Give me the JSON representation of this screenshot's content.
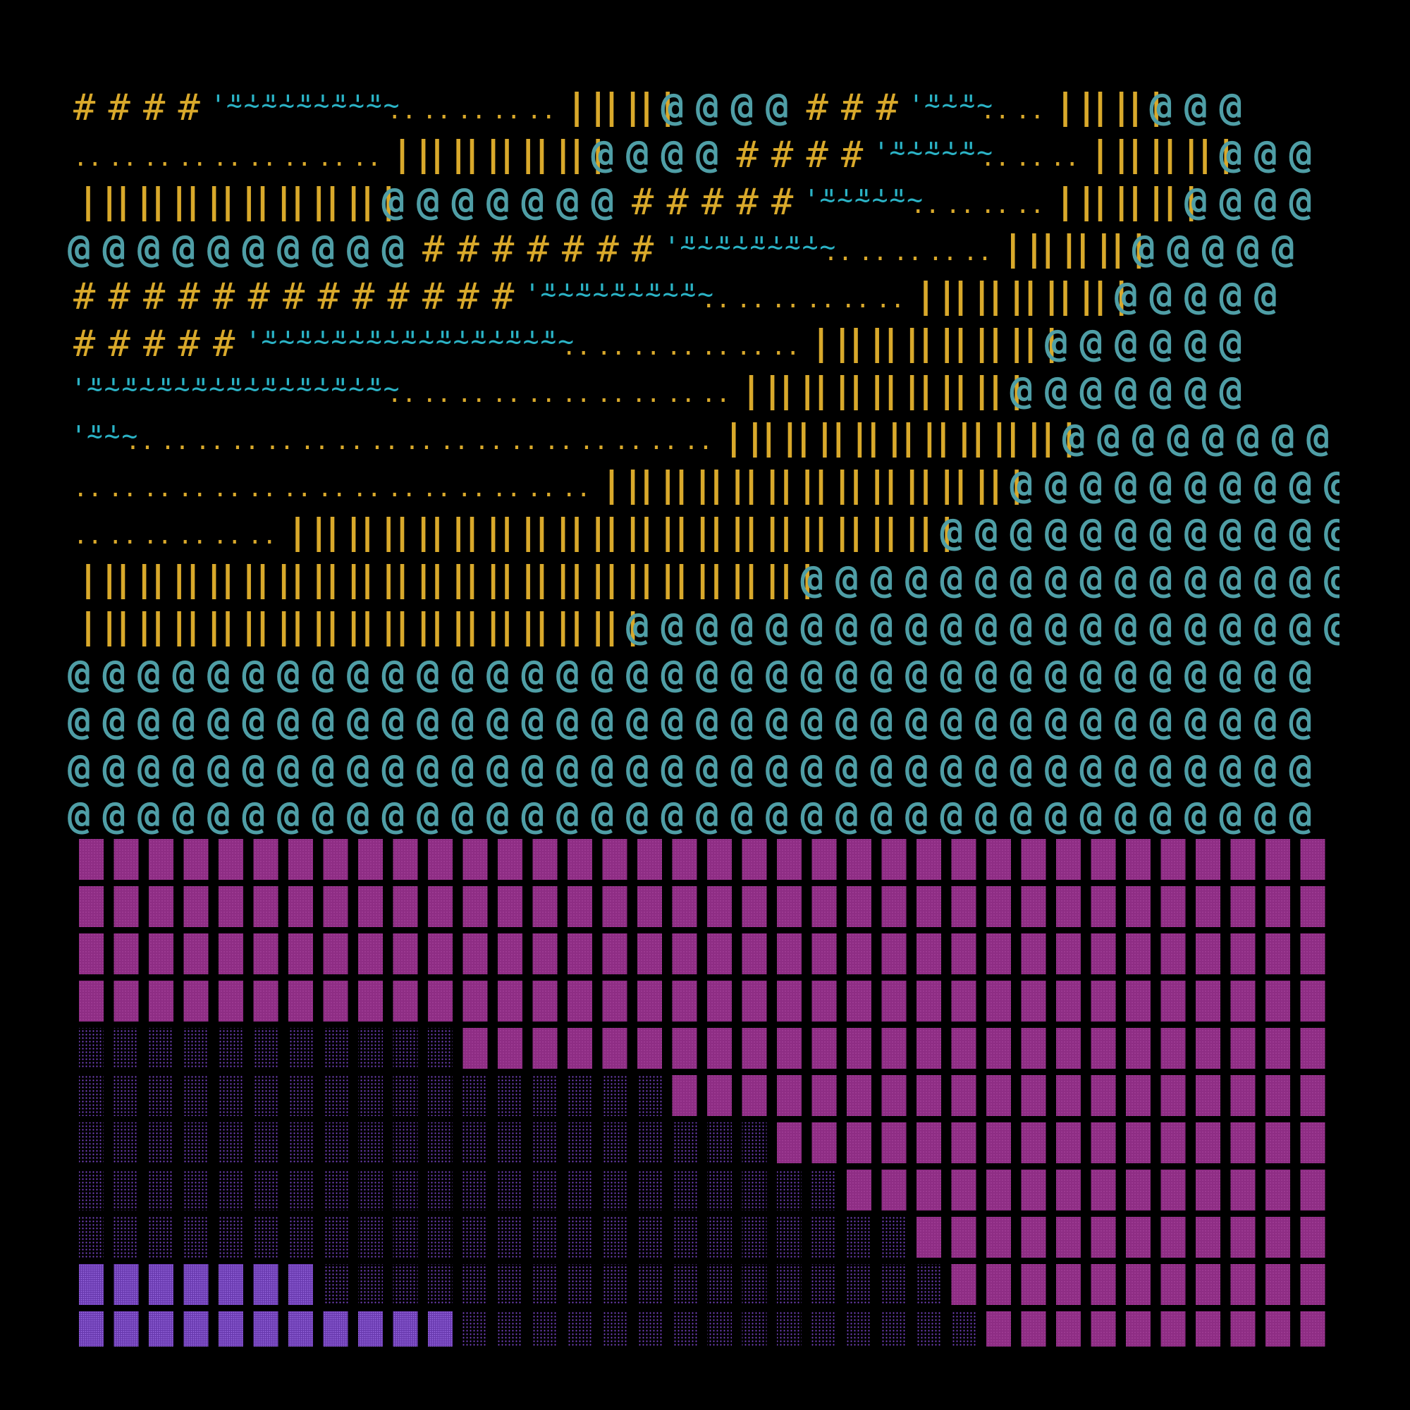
{
  "palette": {
    "background": "#000000",
    "hash": "#d9a92b",
    "tilde": "#2bb3c6",
    "dots": "#d9a92b",
    "bars": "#d9a92b",
    "swirl": "#4f9ea6",
    "block_magenta": "#8e2d84",
    "block_purple": "#6a3bb0"
  },
  "glyphs": {
    "hash": "#",
    "tilde": "'~\"~",
    "dots": "..",
    "bars": "||",
    "swirl": "@"
  },
  "upper_rows": [
    [
      [
        "hash",
        4
      ],
      [
        "tilde",
        10
      ],
      [
        "dots",
        5
      ],
      [
        "bars",
        3
      ],
      [
        "swirl",
        4
      ],
      [
        "hash",
        3
      ],
      [
        "tilde",
        4
      ],
      [
        "dots",
        2
      ],
      [
        "bars",
        3
      ],
      [
        "swirl",
        3
      ]
    ],
    [
      [
        "dots",
        9
      ],
      [
        "bars",
        6
      ],
      [
        "swirl",
        4
      ],
      [
        "hash",
        4
      ],
      [
        "tilde",
        6
      ],
      [
        "dots",
        3
      ],
      [
        "bars",
        4
      ],
      [
        "swirl",
        3
      ]
    ],
    [
      [
        "bars",
        9
      ],
      [
        "swirl",
        7
      ],
      [
        "hash",
        5
      ],
      [
        "tilde",
        6
      ],
      [
        "dots",
        4
      ],
      [
        "bars",
        4
      ],
      [
        "swirl",
        4
      ]
    ],
    [
      [
        "swirl",
        10
      ],
      [
        "hash",
        7
      ],
      [
        "tilde",
        9
      ],
      [
        "dots",
        5
      ],
      [
        "bars",
        4
      ],
      [
        "swirl",
        5
      ]
    ],
    [
      [
        "hash",
        13
      ],
      [
        "tilde",
        10
      ],
      [
        "dots",
        6
      ],
      [
        "bars",
        6
      ],
      [
        "swirl",
        5
      ]
    ],
    [
      [
        "hash",
        5
      ],
      [
        "tilde",
        18
      ],
      [
        "dots",
        7
      ],
      [
        "bars",
        7
      ],
      [
        "swirl",
        6
      ]
    ],
    [
      [
        "tilde",
        18
      ],
      [
        "dots",
        10
      ],
      [
        "bars",
        8
      ],
      [
        "swirl",
        7
      ]
    ],
    [
      [
        "tilde",
        3
      ],
      [
        "dots",
        17
      ],
      [
        "bars",
        10
      ],
      [
        "swirl",
        8
      ]
    ],
    [
      [
        "dots",
        15
      ],
      [
        "bars",
        12
      ],
      [
        "swirl",
        10
      ]
    ],
    [
      [
        "dots",
        6
      ],
      [
        "bars",
        19
      ],
      [
        "swirl",
        12
      ]
    ],
    [
      [
        "bars",
        21
      ],
      [
        "swirl",
        16
      ]
    ],
    [
      [
        "bars",
        16
      ],
      [
        "swirl",
        21
      ]
    ],
    [
      [
        "swirl",
        36
      ]
    ],
    [
      [
        "swirl",
        36
      ]
    ],
    [
      [
        "swirl",
        36
      ]
    ],
    [
      [
        "swirl",
        36
      ]
    ]
  ],
  "lower_rows": [
    [
      [
        "magenta",
        36
      ]
    ],
    [
      [
        "magenta",
        36
      ]
    ],
    [
      [
        "magenta",
        36
      ]
    ],
    [
      [
        "magenta",
        36
      ]
    ],
    [
      [
        "dotted",
        11
      ],
      [
        "magenta",
        25
      ]
    ],
    [
      [
        "dotted",
        17
      ],
      [
        "magenta",
        19
      ]
    ],
    [
      [
        "dotted",
        20
      ],
      [
        "magenta",
        16
      ]
    ],
    [
      [
        "dotted",
        22
      ],
      [
        "magenta",
        14
      ]
    ],
    [
      [
        "dotted",
        24
      ],
      [
        "magenta",
        12
      ]
    ],
    [
      [
        "purple",
        7
      ],
      [
        "dotted",
        18
      ],
      [
        "magenta",
        11
      ]
    ],
    [
      [
        "purple",
        11
      ],
      [
        "dotted",
        15
      ],
      [
        "magenta",
        10
      ]
    ]
  ]
}
